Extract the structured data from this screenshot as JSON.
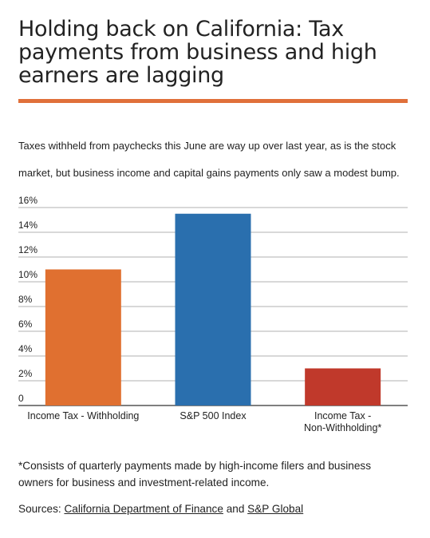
{
  "title": "Holding back on California: Tax payments from business and high earners are lagging",
  "subtitle": "Taxes withheld from paychecks this June are way up over last year, as is the stock market, but business income and capital gains payments only saw a modest bump.",
  "chart_data": {
    "type": "bar",
    "categories": [
      "Income Tax - Withholding",
      "S&P 500 Index",
      "Income Tax - Non-Withholding*"
    ],
    "values": [
      11.0,
      15.5,
      3.0
    ],
    "yticks": [
      "0",
      "2%",
      "4%",
      "6%",
      "8%",
      "10%",
      "12%",
      "14%",
      "16%"
    ],
    "ylim": [
      0,
      16
    ],
    "grid": true,
    "colors": [
      "#e07030",
      "#2a6fae",
      "#c0392b"
    ]
  },
  "footnote": "*Consists of quarterly payments made by high-income filers and business owners for business and investment-related income.",
  "sources": {
    "label": "Sources:",
    "link1": "California Department of Finance",
    "connector": "and",
    "link2": "S&P Global"
  }
}
